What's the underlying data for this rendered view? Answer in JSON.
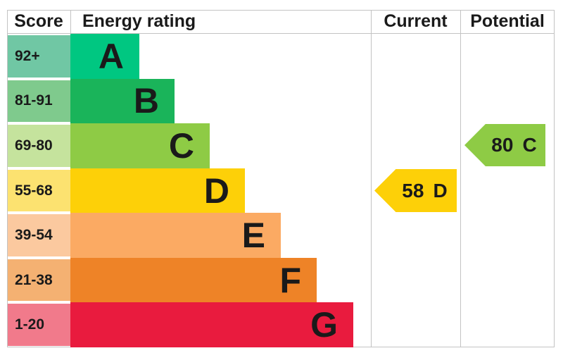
{
  "header": {
    "score": "Score",
    "energy_rating": "Energy rating",
    "current": "Current",
    "potential": "Potential"
  },
  "bands": [
    {
      "grade": "A",
      "score_range": "92+",
      "bar_color": "#00c781",
      "score_bg": "#70c7a4"
    },
    {
      "grade": "B",
      "score_range": "81-91",
      "bar_color": "#1ab45a",
      "score_bg": "#7fca8d"
    },
    {
      "grade": "C",
      "score_range": "69-80",
      "bar_color": "#8ecb45",
      "score_bg": "#c5e39d"
    },
    {
      "grade": "D",
      "score_range": "55-68",
      "bar_color": "#fdd008",
      "score_bg": "#fce270"
    },
    {
      "grade": "E",
      "score_range": "39-54",
      "bar_color": "#fbaa63",
      "score_bg": "#fbc99f"
    },
    {
      "grade": "F",
      "score_range": "21-38",
      "bar_color": "#ee8327",
      "score_bg": "#f4b172"
    },
    {
      "grade": "G",
      "score_range": "1-20",
      "bar_color": "#e91b3e",
      "score_bg": "#f17a8b"
    }
  ],
  "current": {
    "score": "58",
    "grade": "D",
    "color": "#fdd008"
  },
  "potential": {
    "score": "80",
    "grade": "C",
    "color": "#8ecb45"
  },
  "colors": {
    "grid_line": "#c3c3c3",
    "text": "#1a1a1a"
  },
  "chart_data": {
    "type": "bar",
    "title": "Energy rating",
    "columns": [
      "Score",
      "Energy rating",
      "Current",
      "Potential"
    ],
    "categories": [
      "A",
      "B",
      "C",
      "D",
      "E",
      "F",
      "G"
    ],
    "score_ranges": [
      "92+",
      "81-91",
      "69-80",
      "55-68",
      "39-54",
      "21-38",
      "1-20"
    ],
    "bar_lengths_relative": [
      1,
      2,
      3,
      4,
      5,
      6,
      7
    ],
    "current_rating": {
      "score": 58,
      "grade": "D"
    },
    "potential_rating": {
      "score": 80,
      "grade": "C"
    },
    "legend_position": "none",
    "grid": "column-dividers-only"
  }
}
